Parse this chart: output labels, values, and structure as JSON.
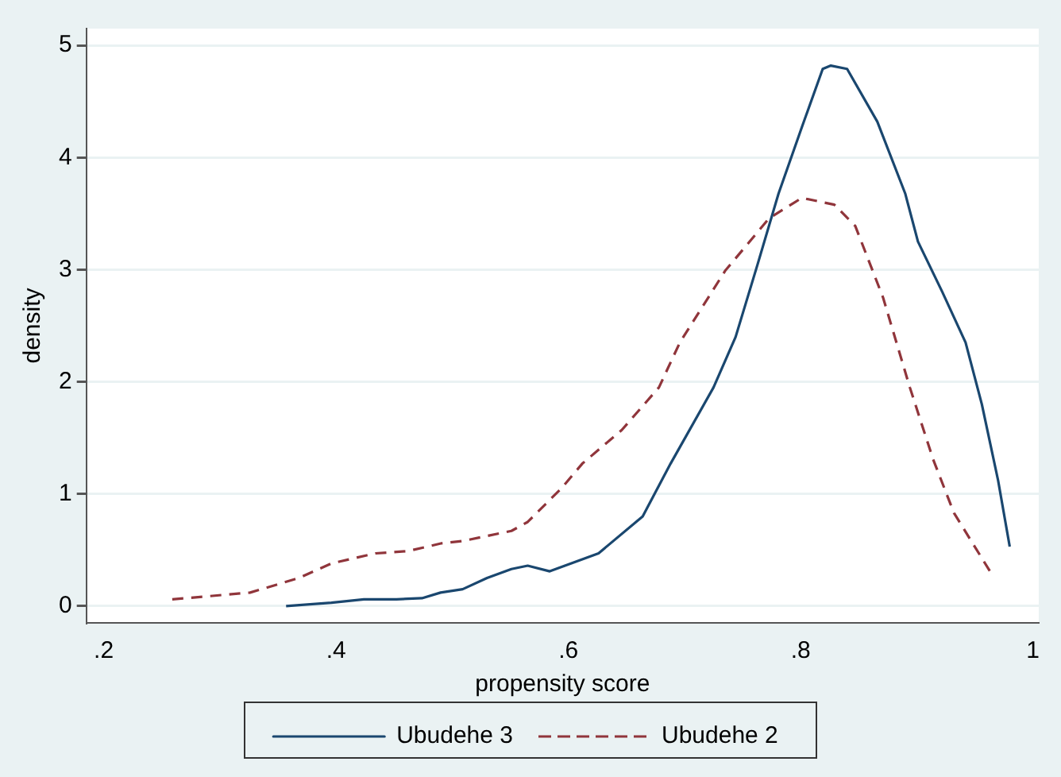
{
  "chart_data": {
    "type": "line",
    "xlabel": "propensity score",
    "ylabel": "density",
    "xlim": [
      0.185,
      1.005
    ],
    "ylim": [
      -0.15,
      5.15
    ],
    "xticks": [
      {
        "value": 0.2,
        "label": ".2"
      },
      {
        "value": 0.4,
        "label": ".4"
      },
      {
        "value": 0.6,
        "label": ".6"
      },
      {
        "value": 0.8,
        "label": ".8"
      },
      1
    ],
    "yticks": [
      0,
      1,
      2,
      3,
      4,
      5
    ],
    "grid": "y",
    "legend": "bottom",
    "marker": "none",
    "series": [
      {
        "name": "Ubudehe 3",
        "color": "#1a476f",
        "line_style": "solid",
        "x": [
          0.357,
          0.396,
          0.424,
          0.452,
          0.474,
          0.49,
          0.509,
          0.53,
          0.551,
          0.565,
          0.584,
          0.626,
          0.664,
          0.688,
          0.725,
          0.744,
          0.763,
          0.781,
          0.801,
          0.819,
          0.826,
          0.84,
          0.866,
          0.89,
          0.901,
          0.922,
          0.942,
          0.956,
          0.97,
          0.98
        ],
        "values": [
          0,
          0.03,
          0.06,
          0.06,
          0.07,
          0.12,
          0.15,
          0.25,
          0.33,
          0.36,
          0.31,
          0.47,
          0.8,
          1.27,
          1.95,
          2.4,
          3.05,
          3.68,
          4.27,
          4.79,
          4.82,
          4.79,
          4.32,
          3.68,
          3.25,
          2.8,
          2.35,
          1.8,
          1.12,
          0.53
        ]
      },
      {
        "name": "Ubudehe 2",
        "color": "#90353b",
        "line_style": "dashed",
        "x": [
          0.259,
          0.326,
          0.368,
          0.396,
          0.434,
          0.462,
          0.491,
          0.509,
          0.551,
          0.565,
          0.594,
          0.612,
          0.646,
          0.678,
          0.696,
          0.735,
          0.773,
          0.801,
          0.829,
          0.847,
          0.871,
          0.894,
          0.914,
          0.932,
          0.963
        ],
        "values": [
          0.06,
          0.12,
          0.25,
          0.38,
          0.47,
          0.49,
          0.56,
          0.58,
          0.67,
          0.75,
          1.05,
          1.27,
          1.57,
          1.95,
          2.35,
          2.99,
          3.46,
          3.64,
          3.58,
          3.39,
          2.75,
          1.95,
          1.31,
          0.83,
          0.31
        ]
      }
    ]
  }
}
